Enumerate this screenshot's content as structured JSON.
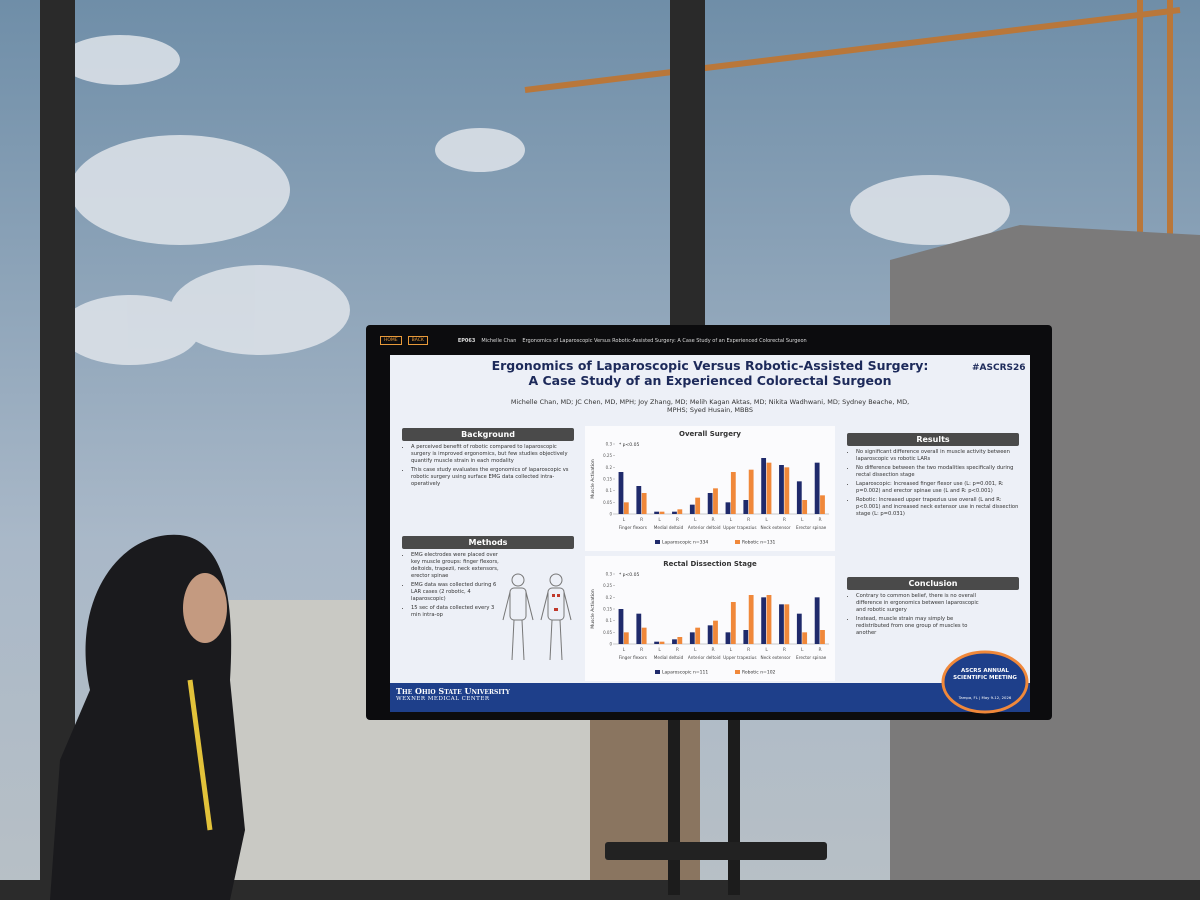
{
  "screen": {
    "top_bar": {
      "home": "HOME",
      "back": "BACK",
      "poster_id": "EP063",
      "presenter": "Michelle Chan",
      "poster_title": "Ergonomics of Laparoscopic Versus Robotic-Assisted Surgery: A Case Study of an Experienced Colorectal Surgeon"
    },
    "title_lines": [
      "Ergonomics of Laparoscopic Versus Robotic-Assisted Surgery:",
      "A Case Study of an Experienced Colorectal Surgeon"
    ],
    "hashtag": "#ASCRS26",
    "authors": "Michelle Chan, MD; JC Chen, MD, MPH; Joy Zhang, MD; Melih Kagan Aktas, MD; Nikita Wadhwani, MD; Sydney Beache, MD, MPHS; Syed Husain, MBBS",
    "background": {
      "heading": "Background",
      "bullets": [
        "A perceived benefit of robotic compared to laparoscopic surgery is improved ergonomics, but few studies objectively quantify muscle strain in each modality",
        "This case study evaluates the ergonomics of laparoscopic vs robotic surgery using surface EMG data collected intra-operatively"
      ]
    },
    "methods": {
      "heading": "Methods",
      "bullets": [
        "EMG electrodes were placed over key muscle groups: finger flexors, deltoids, trapezii, neck extensors, erector spinae",
        "EMG data was collected during 6 LAR cases (2 robotic, 4 laparoscopic)",
        "15 sec of data collected every 3 min intra-op"
      ]
    },
    "results": {
      "heading": "Results",
      "bullets": [
        "No significant difference overall in muscle activity between laparoscopic vs robotic LARs",
        "No difference between the two modalities specifically during rectal dissection stage",
        "Laparoscopic: Increased finger flexor use (L: p=0.001, R: p=0.002) and erector spinae use (L and R: p<0.001)",
        "Robotic: Increased upper trapezius use overall (L and R: p<0.001) and increased neck extensor use in rectal dissection stage (L: p=0.031)"
      ]
    },
    "conclusion": {
      "heading": "Conclusion",
      "bullets": [
        "Contrary to common belief, there is no overall difference in ergonomics between laparoscopic and robotic surgery",
        "Instead, muscle strain may simply be redistributed from one group of muscles to another"
      ]
    },
    "footer": {
      "university": "The Ohio State University",
      "center": "Wexner Medical Center",
      "meeting": "ASCRS ANNUAL SCIENTIFIC MEETING",
      "meeting_place": "Tampa, FL | May 9-12, 2026"
    }
  },
  "chart_data": [
    {
      "type": "bar",
      "title": "Overall Surgery",
      "annotation": "* p<0.05",
      "y_label": "Muscle Activation",
      "categories": [
        "L",
        "R",
        "L",
        "R",
        "L",
        "R",
        "L",
        "R",
        "L",
        "R",
        "L",
        "R"
      ],
      "groups": [
        "Finger flexors",
        "Medial deltoid",
        "Anterior deltoid",
        "Upper trapezius",
        "Neck extensor",
        "Erector spinae"
      ],
      "series": [
        {
          "name": "Laparoscopic n=334",
          "color": "#1f2a6b",
          "values": [
            0.18,
            0.12,
            0.01,
            0.01,
            0.04,
            0.09,
            0.05,
            0.06,
            0.24,
            0.21,
            0.14,
            0.22
          ]
        },
        {
          "name": "Robotic n=131",
          "color": "#f0883a",
          "values": [
            0.05,
            0.09,
            0.01,
            0.02,
            0.07,
            0.11,
            0.18,
            0.19,
            0.22,
            0.2,
            0.06,
            0.08
          ]
        }
      ],
      "ylim": [
        0,
        0.3
      ],
      "yticks": [
        0,
        0.05,
        0.1,
        0.15,
        0.2,
        0.25,
        0.3
      ]
    },
    {
      "type": "bar",
      "title": "Rectal Dissection Stage",
      "annotation": "* p<0.05",
      "y_label": "Muscle Activation",
      "categories": [
        "L",
        "R",
        "L",
        "R",
        "L",
        "R",
        "L",
        "R",
        "L",
        "R",
        "L",
        "R"
      ],
      "groups": [
        "Finger flexors",
        "Medial deltoid",
        "Anterior deltoid",
        "Upper trapezius",
        "Neck extensor",
        "Erector spinae"
      ],
      "series": [
        {
          "name": "Laparoscopic n=111",
          "color": "#1f2a6b",
          "values": [
            0.15,
            0.13,
            0.01,
            0.02,
            0.05,
            0.08,
            0.05,
            0.06,
            0.2,
            0.17,
            0.13,
            0.2
          ]
        },
        {
          "name": "Robotic n=102",
          "color": "#f0883a",
          "values": [
            0.05,
            0.07,
            0.01,
            0.03,
            0.07,
            0.1,
            0.18,
            0.21,
            0.21,
            0.17,
            0.05,
            0.06
          ]
        }
      ],
      "ylim": [
        0,
        0.3
      ],
      "yticks": [
        0,
        0.05,
        0.1,
        0.15,
        0.2,
        0.25,
        0.3
      ]
    }
  ]
}
